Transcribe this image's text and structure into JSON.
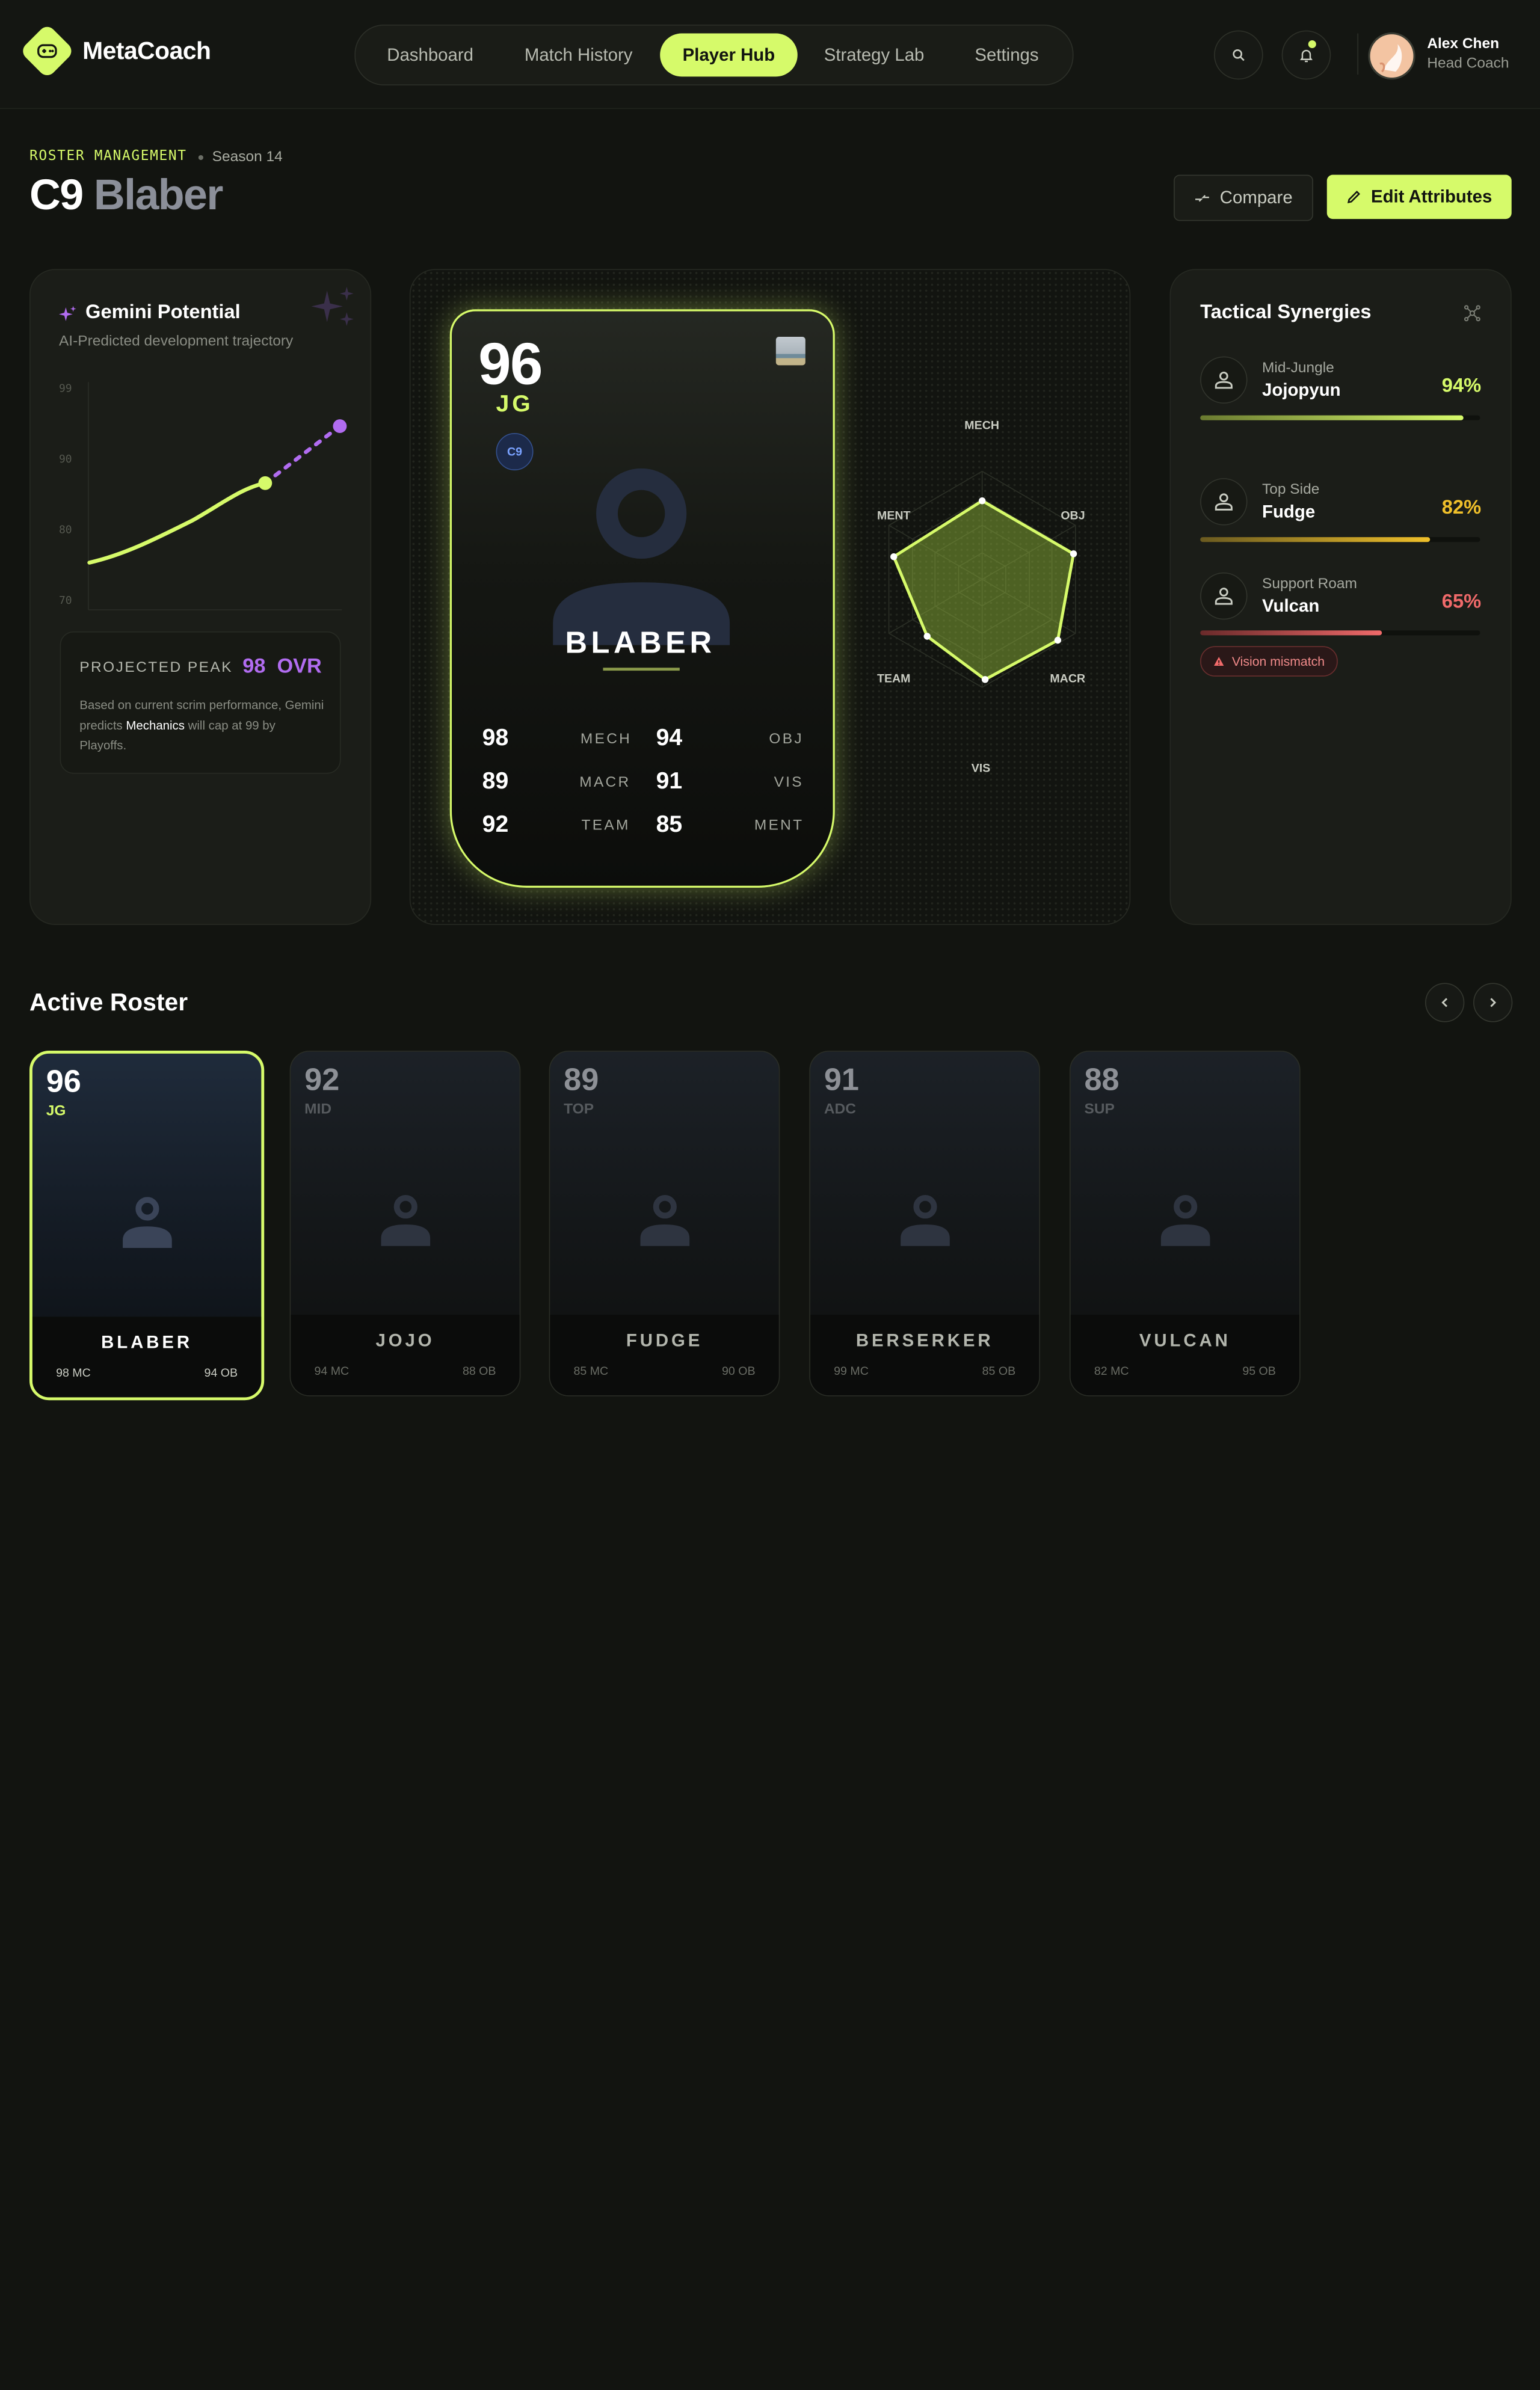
{
  "app": {
    "name": "MetaCoach"
  },
  "nav": {
    "items": [
      "Dashboard",
      "Match History",
      "Player Hub",
      "Strategy Lab",
      "Settings"
    ],
    "active": "Player Hub"
  },
  "user": {
    "name": "Alex Chen",
    "role": "Head Coach"
  },
  "page": {
    "breadcrumb": "ROSTER MANAGEMENT",
    "season": "Season 14",
    "title_team": "C9",
    "title_player": "Blaber",
    "compare_label": "Compare",
    "edit_label": "Edit Attributes"
  },
  "gemini": {
    "title": "Gemini Potential",
    "subtitle": "AI-Predicted development trajectory",
    "y_ticks": [
      "99",
      "90",
      "80",
      "70"
    ],
    "peak_label": "PROJECTED PEAK",
    "peak_value": "98",
    "peak_unit": "OVR",
    "desc_pre": "Based on current scrim performance, Gemini predicts",
    "desc_bold": "Mechanics",
    "desc_post": "will cap at 99 by Playoffs."
  },
  "player_card": {
    "ovr": "96",
    "position": "JG",
    "team_badge": "C9",
    "name": "BLABER",
    "stats": [
      {
        "value": "98",
        "label": "MECH"
      },
      {
        "value": "94",
        "label": "OBJ"
      },
      {
        "value": "89",
        "label": "MACR"
      },
      {
        "value": "91",
        "label": "VIS"
      },
      {
        "value": "92",
        "label": "TEAM"
      },
      {
        "value": "85",
        "label": "MENT"
      }
    ]
  },
  "radar": {
    "labels": {
      "mech": "MECH",
      "obj": "OBJ",
      "macr": "MACR",
      "vis": "VIS",
      "team": "TEAM",
      "ment": "MENT"
    }
  },
  "synergies": {
    "title": "Tactical Synergies",
    "items": [
      {
        "role": "Mid-Jungle",
        "name": "Jojopyun",
        "pct_label": "94%",
        "pct": 94,
        "color": "#d6fa6a"
      },
      {
        "role": "Top Side",
        "name": "Fudge",
        "pct_label": "82%",
        "pct": 82,
        "color": "#f0c02a"
      },
      {
        "role": "Support Roam",
        "name": "Vulcan",
        "pct_label": "65%",
        "pct": 65,
        "color": "#f06a6a"
      }
    ],
    "warning": "Vision mismatch"
  },
  "roster": {
    "title": "Active Roster",
    "players": [
      {
        "ovr": "96",
        "pos": "JG",
        "name": "BLABER",
        "left": "98 MC",
        "right": "94 OB",
        "selected": true
      },
      {
        "ovr": "92",
        "pos": "MID",
        "name": "JOJO",
        "left": "94 MC",
        "right": "88 OB",
        "selected": false
      },
      {
        "ovr": "89",
        "pos": "TOP",
        "name": "FUDGE",
        "left": "85 MC",
        "right": "90 OB",
        "selected": false
      },
      {
        "ovr": "91",
        "pos": "ADC",
        "name": "BERSERKER",
        "left": "99 MC",
        "right": "85 OB",
        "selected": false
      },
      {
        "ovr": "88",
        "pos": "SUP",
        "name": "VULCAN",
        "left": "82 MC",
        "right": "95 OB",
        "selected": false
      }
    ]
  },
  "colors": {
    "accent": "#d6fa6a",
    "purple": "#b16cf0",
    "warn": "#f06a6a",
    "amber": "#f0c02a"
  }
}
